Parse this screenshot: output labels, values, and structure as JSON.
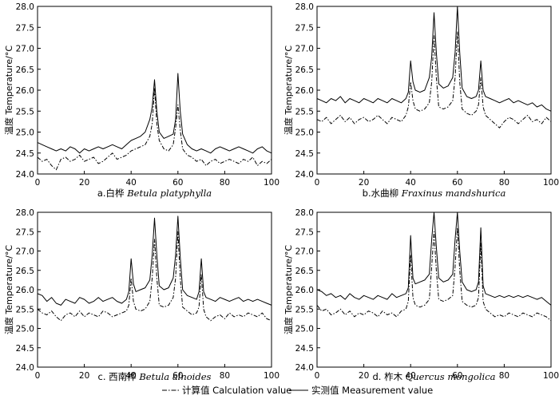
{
  "chart_data": [
    {
      "type": "line",
      "panel": "a",
      "caption_cn": "a.白桦",
      "caption_latin": "Betula platyphylla",
      "ylabel": "温度 Temperature/°C",
      "xlim": [
        0,
        100
      ],
      "ylim": [
        24.0,
        28.0
      ],
      "x_ticks": [
        0,
        20,
        40,
        60,
        80,
        100
      ],
      "y_ticks": [
        "24.0",
        "24.5",
        "25.0",
        "25.5",
        "26.0",
        "26.5",
        "27.0",
        "27.5",
        "28.0"
      ],
      "x": [
        0,
        2,
        4,
        6,
        8,
        10,
        12,
        14,
        16,
        18,
        20,
        22,
        24,
        26,
        28,
        30,
        32,
        34,
        36,
        38,
        40,
        42,
        44,
        46,
        48,
        49,
        50,
        51,
        52,
        54,
        56,
        58,
        59,
        60,
        61,
        62,
        64,
        66,
        68,
        70,
        72,
        74,
        76,
        78,
        80,
        82,
        84,
        86,
        88,
        90,
        92,
        94,
        96,
        98,
        100
      ],
      "series": [
        {
          "name": "计算值 Calculation value",
          "values": [
            24.4,
            24.3,
            24.35,
            24.2,
            24.1,
            24.35,
            24.4,
            24.3,
            24.35,
            24.45,
            24.3,
            24.35,
            24.4,
            24.25,
            24.3,
            24.4,
            24.5,
            24.35,
            24.4,
            24.45,
            24.55,
            24.6,
            24.65,
            24.7,
            24.9,
            25.2,
            26.05,
            25.2,
            24.8,
            24.6,
            24.55,
            24.7,
            25.1,
            25.65,
            25.05,
            24.6,
            24.45,
            24.4,
            24.3,
            24.35,
            24.2,
            24.3,
            24.35,
            24.25,
            24.3,
            24.35,
            24.3,
            24.25,
            24.35,
            24.3,
            24.4,
            24.2,
            24.3,
            24.25,
            24.35
          ]
        },
        {
          "name": "实测值 Measurement value",
          "values": [
            24.75,
            24.7,
            24.65,
            24.6,
            24.55,
            24.6,
            24.55,
            24.65,
            24.6,
            24.5,
            24.6,
            24.55,
            24.6,
            24.65,
            24.6,
            24.65,
            24.7,
            24.65,
            24.6,
            24.7,
            24.8,
            24.85,
            24.9,
            25.0,
            25.3,
            25.6,
            26.25,
            25.5,
            25.0,
            24.85,
            24.9,
            24.95,
            25.3,
            26.4,
            25.5,
            24.95,
            24.7,
            24.6,
            24.55,
            24.6,
            24.55,
            24.5,
            24.6,
            24.65,
            24.6,
            24.55,
            24.6,
            24.65,
            24.6,
            24.55,
            24.5,
            24.6,
            24.65,
            24.55,
            24.5
          ]
        }
      ]
    },
    {
      "type": "line",
      "panel": "b",
      "caption_cn": "b.水曲柳",
      "caption_latin": "Fraxinus mandshurica",
      "ylabel": "温度 Temperature/°C",
      "xlim": [
        0,
        100
      ],
      "ylim": [
        24.0,
        28.0
      ],
      "x_ticks": [
        0,
        20,
        40,
        60,
        80,
        100
      ],
      "y_ticks": [
        "24.0",
        "24.5",
        "25.0",
        "25.5",
        "26.0",
        "26.5",
        "27.0",
        "27.5",
        "28.0"
      ],
      "x": [
        0,
        2,
        4,
        6,
        8,
        10,
        12,
        14,
        16,
        18,
        20,
        22,
        24,
        26,
        28,
        30,
        32,
        34,
        36,
        38,
        39,
        40,
        41,
        42,
        44,
        46,
        48,
        49,
        50,
        51,
        52,
        54,
        56,
        58,
        59,
        60,
        61,
        62,
        64,
        66,
        68,
        69,
        70,
        71,
        72,
        74,
        76,
        78,
        80,
        82,
        84,
        86,
        88,
        90,
        92,
        94,
        96,
        98,
        100
      ],
      "series": [
        {
          "name": "计算值 Calculation value",
          "values": [
            25.3,
            25.25,
            25.35,
            25.2,
            25.3,
            25.4,
            25.25,
            25.35,
            25.2,
            25.3,
            25.35,
            25.25,
            25.3,
            25.4,
            25.3,
            25.2,
            25.35,
            25.3,
            25.25,
            25.4,
            25.6,
            26.2,
            25.75,
            25.55,
            25.5,
            25.55,
            25.7,
            26.2,
            27.3,
            26.3,
            25.6,
            25.55,
            25.6,
            25.75,
            26.3,
            27.4,
            26.2,
            25.55,
            25.45,
            25.4,
            25.5,
            25.65,
            26.3,
            25.6,
            25.4,
            25.3,
            25.2,
            25.1,
            25.25,
            25.35,
            25.3,
            25.2,
            25.3,
            25.4,
            25.25,
            25.3,
            25.2,
            25.35,
            25.25
          ]
        },
        {
          "name": "实测值 Measurement value",
          "values": [
            25.8,
            25.75,
            25.7,
            25.8,
            25.75,
            25.85,
            25.7,
            25.8,
            25.75,
            25.7,
            25.8,
            25.75,
            25.7,
            25.8,
            25.75,
            25.7,
            25.8,
            25.75,
            25.7,
            25.8,
            25.95,
            26.7,
            26.2,
            26.0,
            25.95,
            26.0,
            26.3,
            26.8,
            27.85,
            26.9,
            26.15,
            26.05,
            26.1,
            26.3,
            26.9,
            28.0,
            26.9,
            26.05,
            25.85,
            25.8,
            25.85,
            26.0,
            26.7,
            26.0,
            25.85,
            25.8,
            25.75,
            25.7,
            25.75,
            25.8,
            25.7,
            25.75,
            25.7,
            25.65,
            25.7,
            25.6,
            25.65,
            25.55,
            25.5
          ]
        }
      ]
    },
    {
      "type": "line",
      "panel": "c",
      "caption_cn": "c. 西南桦",
      "caption_latin": "Betula alnoides",
      "ylabel": "温度 Temperature/°C",
      "xlim": [
        0,
        100
      ],
      "ylim": [
        24.0,
        28.0
      ],
      "x_ticks": [
        0,
        20,
        40,
        60,
        80,
        100
      ],
      "y_ticks": [
        "24.0",
        "24.5",
        "25.0",
        "25.5",
        "26.0",
        "26.5",
        "27.0",
        "27.5",
        "28.0"
      ],
      "x": [
        0,
        2,
        4,
        6,
        8,
        10,
        12,
        14,
        16,
        18,
        20,
        22,
        24,
        26,
        28,
        30,
        32,
        34,
        36,
        38,
        39,
        40,
        41,
        42,
        44,
        46,
        48,
        49,
        50,
        51,
        52,
        54,
        56,
        58,
        59,
        60,
        61,
        62,
        64,
        66,
        68,
        69,
        70,
        71,
        72,
        74,
        76,
        78,
        80,
        82,
        84,
        86,
        88,
        90,
        92,
        94,
        96,
        98,
        100
      ],
      "series": [
        {
          "name": "计算值 Calculation value",
          "values": [
            25.5,
            25.4,
            25.35,
            25.45,
            25.3,
            25.2,
            25.35,
            25.4,
            25.3,
            25.45,
            25.3,
            25.4,
            25.35,
            25.3,
            25.45,
            25.4,
            25.3,
            25.35,
            25.4,
            25.45,
            25.6,
            26.3,
            25.7,
            25.5,
            25.45,
            25.5,
            25.7,
            26.3,
            27.3,
            26.3,
            25.6,
            25.55,
            25.6,
            25.8,
            26.3,
            27.5,
            26.3,
            25.55,
            25.45,
            25.35,
            25.4,
            25.55,
            26.4,
            25.5,
            25.3,
            25.2,
            25.3,
            25.35,
            25.25,
            25.4,
            25.3,
            25.35,
            25.3,
            25.4,
            25.35,
            25.3,
            25.4,
            25.25,
            25.2
          ]
        },
        {
          "name": "实测值 Measurement value",
          "values": [
            25.9,
            25.85,
            25.7,
            25.8,
            25.65,
            25.6,
            25.75,
            25.7,
            25.65,
            25.8,
            25.75,
            25.65,
            25.7,
            25.8,
            25.7,
            25.75,
            25.8,
            25.7,
            25.65,
            25.75,
            25.95,
            26.8,
            26.15,
            25.95,
            26.0,
            26.05,
            26.25,
            26.9,
            27.85,
            26.9,
            26.1,
            26.0,
            26.05,
            26.3,
            26.9,
            27.9,
            26.85,
            26.0,
            25.85,
            25.8,
            25.75,
            25.95,
            26.8,
            25.95,
            25.8,
            25.75,
            25.7,
            25.8,
            25.75,
            25.7,
            25.75,
            25.8,
            25.7,
            25.75,
            25.7,
            25.75,
            25.7,
            25.65,
            25.6
          ]
        }
      ]
    },
    {
      "type": "line",
      "panel": "d",
      "caption_cn": "d. 柞木",
      "caption_latin": "Quercus mongolica",
      "ylabel": "温度 Temperature/°C",
      "xlim": [
        0,
        100
      ],
      "ylim": [
        24.0,
        28.0
      ],
      "x_ticks": [
        0,
        20,
        40,
        60,
        80,
        100
      ],
      "y_ticks": [
        "24.0",
        "24.5",
        "25.0",
        "25.5",
        "26.0",
        "26.5",
        "27.0",
        "27.5",
        "28.0"
      ],
      "x": [
        0,
        2,
        4,
        6,
        8,
        10,
        12,
        14,
        16,
        18,
        20,
        22,
        24,
        26,
        28,
        30,
        32,
        34,
        36,
        38,
        39,
        40,
        41,
        42,
        44,
        46,
        48,
        49,
        50,
        51,
        52,
        54,
        56,
        58,
        59,
        60,
        61,
        62,
        64,
        66,
        68,
        69,
        70,
        71,
        72,
        74,
        76,
        78,
        80,
        82,
        84,
        86,
        88,
        90,
        92,
        94,
        96,
        98,
        100
      ],
      "series": [
        {
          "name": "计算值 Calculation value",
          "values": [
            25.6,
            25.45,
            25.5,
            25.35,
            25.4,
            25.5,
            25.35,
            25.45,
            25.3,
            25.4,
            25.35,
            25.45,
            25.4,
            25.3,
            25.45,
            25.35,
            25.4,
            25.3,
            25.45,
            25.5,
            25.7,
            26.9,
            25.8,
            25.6,
            25.55,
            25.6,
            25.75,
            26.6,
            27.5,
            26.5,
            25.75,
            25.7,
            25.75,
            25.85,
            26.6,
            27.6,
            26.5,
            25.7,
            25.6,
            25.55,
            25.6,
            25.8,
            27.2,
            25.7,
            25.5,
            25.4,
            25.3,
            25.35,
            25.3,
            25.4,
            25.35,
            25.3,
            25.4,
            25.35,
            25.3,
            25.4,
            25.35,
            25.3,
            25.2
          ]
        },
        {
          "name": "实测值 Measurement value",
          "values": [
            26.0,
            25.95,
            25.85,
            25.9,
            25.8,
            25.85,
            25.75,
            25.9,
            25.8,
            25.75,
            25.85,
            25.8,
            25.75,
            25.85,
            25.8,
            25.75,
            25.9,
            25.8,
            25.85,
            25.9,
            26.05,
            27.4,
            26.3,
            26.15,
            26.2,
            26.25,
            26.4,
            27.3,
            28.0,
            27.1,
            26.3,
            26.2,
            26.25,
            26.4,
            27.3,
            28.0,
            27.0,
            26.2,
            26.0,
            25.95,
            26.0,
            26.2,
            27.6,
            26.1,
            25.9,
            25.85,
            25.8,
            25.85,
            25.8,
            25.85,
            25.8,
            25.85,
            25.8,
            25.85,
            25.8,
            25.75,
            25.8,
            25.7,
            25.6
          ]
        }
      ]
    }
  ],
  "legend": {
    "calc_label": "计算值 Calculation value",
    "meas_label": "实测值 Measurement value"
  }
}
